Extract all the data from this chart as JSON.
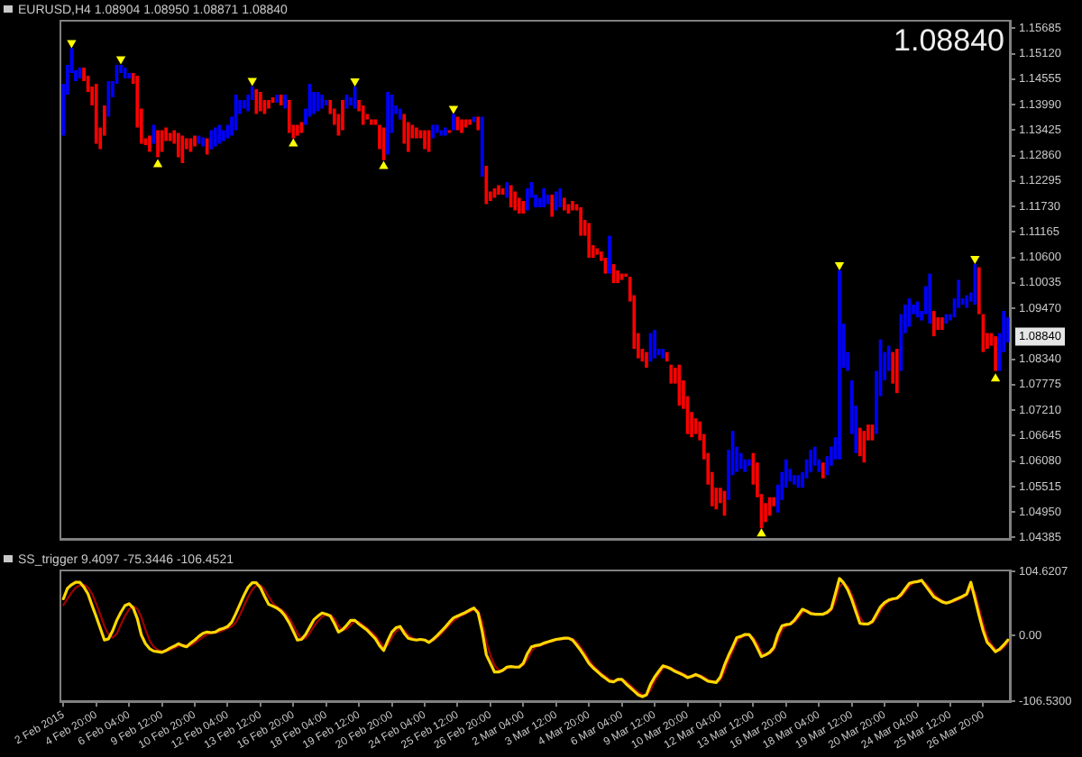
{
  "chart_data": [
    {
      "type": "bar",
      "title": "EURUSD,H4 1.08904 1.08950 1.08871 1.08840",
      "annotations": [
        "1.08840",
        {
          "text": "1.08840",
          "y": 1.0884
        }
      ],
      "categories": [
        null,
        null,
        null,
        null,
        null,
        null,
        null,
        null,
        null,
        null,
        null,
        null,
        null,
        null,
        null,
        null,
        null,
        null,
        null,
        null,
        null,
        null,
        null,
        null,
        null,
        null,
        null,
        null,
        null,
        null,
        null,
        null,
        null,
        null,
        null,
        null,
        null,
        null,
        null,
        null,
        null,
        null,
        null,
        null,
        null,
        null,
        null,
        null,
        null,
        null,
        null,
        null,
        null,
        null,
        null,
        null,
        null,
        null,
        null,
        null,
        null,
        null,
        null,
        null,
        null,
        null,
        null,
        null,
        null,
        null,
        null,
        null,
        null,
        null,
        null,
        null,
        null,
        null,
        null,
        null,
        null,
        null,
        null,
        null,
        null,
        null,
        null,
        null,
        null,
        null,
        null,
        null,
        null,
        null,
        null,
        null,
        null,
        null,
        null,
        null,
        null,
        null,
        null,
        null,
        null,
        null,
        null,
        null,
        null,
        null,
        null,
        null,
        null,
        null,
        null,
        null,
        null,
        null,
        null,
        null,
        null,
        null,
        null,
        null,
        null,
        null,
        null,
        null,
        null,
        null,
        null,
        null,
        null,
        null,
        null,
        null,
        null,
        null,
        null,
        null,
        null,
        null,
        null,
        null,
        null,
        null,
        null,
        null,
        null,
        null,
        null,
        null,
        null,
        null,
        null,
        null,
        null,
        null,
        null,
        null,
        null,
        null,
        null,
        null,
        null,
        null,
        null,
        null,
        null,
        null,
        null,
        null,
        null,
        null,
        null,
        null,
        null,
        null,
        null,
        null,
        null,
        null,
        null,
        null,
        null,
        null,
        null,
        null,
        null,
        null,
        null,
        null,
        null,
        null,
        null,
        null,
        null,
        null,
        null,
        null,
        null,
        null,
        null,
        null,
        null,
        null,
        null,
        null,
        null,
        null,
        null,
        null,
        null,
        null,
        null,
        null,
        null,
        null,
        null,
        null,
        null,
        null,
        null,
        null,
        null,
        null,
        null,
        null,
        null,
        null,
        null
      ],
      "series": [
        {
          "base": [
            1.133,
            1.1421,
            1.1469,
            1.1451,
            1.1457,
            1.1451,
            1.1427,
            1.1397,
            1.1312,
            1.13,
            1.133,
            1.1372,
            1.1415,
            1.1445,
            1.1469,
            1.1457,
            1.1457,
            1.1445,
            1.1348,
            1.1312,
            1.1309,
            1.1294,
            1.1312,
            1.1282,
            1.1294,
            1.1318,
            1.1318,
            1.1312,
            1.1282,
            1.1269,
            1.13,
            1.1294,
            1.1306,
            1.1312,
            1.1306,
            1.1288,
            1.13,
            1.1306,
            1.1312,
            1.1318,
            1.1324,
            1.133,
            1.1342,
            1.1378,
            1.139,
            1.1384,
            1.1409,
            1.1378,
            1.1384,
            1.1378,
            1.139,
            1.1403,
            1.1403,
            1.1397,
            1.139,
            1.1336,
            1.1324,
            1.133,
            1.1336,
            1.1354,
            1.1372,
            1.1378,
            1.1384,
            1.139,
            1.1397,
            1.1378,
            1.1354,
            1.133,
            1.1342,
            1.139,
            1.1397,
            1.139,
            1.1384,
            1.1354,
            1.1366,
            1.1354,
            1.1354,
            1.13,
            1.1275,
            1.1288,
            1.1336,
            1.1378,
            1.1366,
            1.1312,
            1.1294,
            1.1324,
            1.1324,
            1.1324,
            1.13,
            1.1294,
            1.1324,
            1.1336,
            1.133,
            1.133,
            1.1336,
            1.1342,
            1.1342,
            1.1336,
            1.1348,
            1.1354,
            1.136,
            1.1342,
            1.1239,
            1.1178,
            1.1185,
            1.1192,
            1.1199,
            1.1199,
            1.1192,
            1.1171,
            1.1164,
            1.1157,
            1.1157,
            1.1164,
            1.1192,
            1.1171,
            1.1171,
            1.1171,
            1.1178,
            1.115,
            1.1164,
            1.1171,
            1.1164,
            1.1157,
            1.1164,
            1.1164,
            1.1108,
            1.1108,
            1.1059,
            1.1059,
            1.1066,
            1.1052,
            1.1024,
            1.1024,
            1.1003,
            1.1003,
            1.101,
            1.1017,
            1.0962,
            1.0857,
            1.0836,
            1.0829,
            1.0815,
            1.0829,
            1.0836,
            1.0843,
            1.0836,
            1.0829,
            1.078,
            1.078,
            1.0731,
            1.0724,
            1.0668,
            1.0661,
            1.0668,
            1.0654,
            1.0612,
            1.0556,
            1.0508,
            1.0501,
            1.0515,
            1.0487,
            1.0522,
            1.0577,
            1.0584,
            1.0591,
            1.0584,
            1.0598,
            1.0556,
            1.0528,
            1.0459,
            1.0473,
            1.0487,
            1.0508,
            1.0494,
            1.0522,
            1.0549,
            1.0563,
            1.0556,
            1.0549,
            1.0549,
            1.057,
            1.0584,
            1.0598,
            1.0584,
            1.057,
            1.0577,
            1.0598,
            1.0612,
            1.0612,
            1.0815,
            1.0808,
            1.0668,
            1.0626,
            1.0619,
            1.0605,
            1.0654,
            1.0654,
            1.0668,
            1.0752,
            1.0787,
            1.0808,
            1.078,
            1.0759,
            1.0808,
            1.0892,
            1.0906,
            1.0934,
            1.0927,
            1.092,
            1.0934,
            1.0913,
            1.0885,
            1.0899,
            1.0899,
            1.0913,
            1.092,
            1.0927,
            1.0948,
            1.0955,
            1.0948,
            1.0962,
            1.0955,
            1.0934,
            1.085,
            1.0857,
            1.0864,
            1.0808,
            1.0808,
            1.085,
            1.0871
          ],
          "values": [
            0.0115,
            0.0066,
            0.0055,
            0.0024,
            0.0024,
            0.003,
            0.0036,
            0.0042,
            0.0133,
            0.0048,
            0.0067,
            0.0079,
            0.0036,
            0.0042,
            0.0018,
            0.0024,
            0.0012,
            0.0024,
            0.0115,
            0.0078,
            0.0015,
            0.0036,
            0.0042,
            0.006,
            0.0048,
            0.003,
            0.0018,
            0.003,
            0.0054,
            0.0061,
            0.0024,
            0.003,
            0.0024,
            0.0018,
            0.002,
            0.0036,
            0.0042,
            0.0042,
            0.0042,
            0.0024,
            0.003,
            0.0042,
            0.0079,
            0.0031,
            0.0019,
            0.0037,
            0.003,
            0.0055,
            0.0043,
            0.0031,
            0.0019,
            0.0012,
            0.0018,
            0.0024,
            0.0031,
            0.0073,
            0.003,
            0.0024,
            0.0024,
            0.0036,
            0.0073,
            0.0049,
            0.0043,
            0.0031,
            0.0012,
            0.0031,
            0.0036,
            0.0048,
            0.0067,
            0.0031,
            0.0018,
            0.0049,
            0.0025,
            0.0043,
            0.0012,
            0.0012,
            0.0012,
            0.0054,
            0.0073,
            0.0139,
            0.0085,
            0.0019,
            0.0024,
            0.0066,
            0.0066,
            0.003,
            0.0024,
            0.0018,
            0.0042,
            0.0048,
            0.003,
            0.0018,
            0.0012,
            0.0018,
            0.0006,
            0.0036,
            0.003,
            0.003,
            0.0018,
            0.0012,
            0.0012,
            0.003,
            0.0133,
            0.0085,
            0.0021,
            0.0021,
            0.0021,
            0.0014,
            0.0035,
            0.0049,
            0.0042,
            0.0035,
            0.0028,
            0.0049,
            0.0035,
            0.0028,
            0.0021,
            0.0042,
            0.0021,
            0.0049,
            0.0042,
            0.0042,
            0.0028,
            0.0021,
            0.0021,
            0.0014,
            0.0063,
            0.0035,
            0.0077,
            0.0028,
            0.0014,
            0.0021,
            0.0035,
            0.0084,
            0.0042,
            0.0028,
            0.0014,
            0.0007,
            0.0055,
            0.0119,
            0.0056,
            0.0028,
            0.0035,
            0.0063,
            0.0063,
            0.0014,
            0.0021,
            0.0021,
            0.0042,
            0.0035,
            0.0091,
            0.0063,
            0.0084,
            0.0056,
            0.0035,
            0.0042,
            0.0056,
            0.007,
            0.0076,
            0.0048,
            0.0034,
            0.0055,
            0.0111,
            0.0098,
            0.0056,
            0.0035,
            0.0028,
            0.0014,
            0.007,
            0.0077,
            0.0076,
            0.0042,
            0.0041,
            0.002,
            0.0062,
            0.0062,
            0.0063,
            0.0028,
            0.0021,
            0.0028,
            0.0035,
            0.0042,
            0.0049,
            0.0042,
            0.0028,
            0.0035,
            0.0042,
            0.0042,
            0.0049,
            0.0419,
            0.0098,
            0.0042,
            0.0119,
            0.0105,
            0.0063,
            0.007,
            0.0035,
            0.0035,
            0.014,
            0.0126,
            0.0063,
            0.0056,
            0.007,
            0.0098,
            0.0126,
            0.0063,
            0.0063,
            0.0021,
            0.0035,
            0.0021,
            0.0062,
            0.0111,
            0.0056,
            0.0028,
            0.0028,
            0.0021,
            0.0014,
            0.0042,
            0.0062,
            0.0014,
            0.0028,
            0.002,
            0.009,
            0.0104,
            0.0084,
            0.0035,
            0.0028,
            0.0077,
            0.0084,
            0.0091,
            0.0056
          ],
          "colors": [
            "#0000ff",
            "#0000ff",
            "#0000ff",
            "#0000ff",
            "#0000ff",
            "#ff0000",
            "#ff0000",
            "#ff0000",
            "#ff0000",
            "#ff0000",
            "#ff0000",
            "#0000ff",
            "#0000ff",
            "#0000ff",
            "#0000ff",
            "#0000ff",
            "#0000ff",
            "#ff0000",
            "#ff0000",
            "#ff0000",
            "#ff0000",
            "#ff0000",
            "#0000ff",
            "#ff0000",
            "#ff0000",
            "#ff0000",
            "#ff0000",
            "#ff0000",
            "#ff0000",
            "#ff0000",
            "#ff0000",
            "#ff0000",
            "#ff0000",
            "#0000ff",
            "#0000ff",
            "#ff0000",
            "#0000ff",
            "#0000ff",
            "#0000ff",
            "#0000ff",
            "#0000ff",
            "#0000ff",
            "#0000ff",
            "#0000ff",
            "#0000ff",
            "#0000ff",
            "#0000ff",
            "#ff0000",
            "#ff0000",
            "#ff0000",
            "#ff0000",
            "#ff0000",
            "#0000ff",
            "#ff0000",
            "#0000ff",
            "#ff0000",
            "#ff0000",
            "#ff0000",
            "#ff0000",
            "#0000ff",
            "#0000ff",
            "#0000ff",
            "#0000ff",
            "#0000ff",
            "#0000ff",
            "#ff0000",
            "#ff0000",
            "#ff0000",
            "#ff0000",
            "#0000ff",
            "#0000ff",
            "#0000ff",
            "#ff0000",
            "#ff0000",
            "#ff0000",
            "#ff0000",
            "#ff0000",
            "#ff0000",
            "#ff0000",
            "#0000ff",
            "#0000ff",
            "#0000ff",
            "#0000ff",
            "#ff0000",
            "#ff0000",
            "#ff0000",
            "#ff0000",
            "#ff0000",
            "#ff0000",
            "#ff0000",
            "#0000ff",
            "#0000ff",
            "#0000ff",
            "#0000ff",
            "#ff0000",
            "#0000ff",
            "#ff0000",
            "#ff0000",
            "#ff0000",
            "#ff0000",
            "#0000ff",
            "#ff0000",
            "#0000ff",
            "#ff0000",
            "#ff0000",
            "#ff0000",
            "#ff0000",
            "#ff0000",
            "#0000ff",
            "#ff0000",
            "#ff0000",
            "#ff0000",
            "#ff0000",
            "#0000ff",
            "#0000ff",
            "#0000ff",
            "#0000ff",
            "#0000ff",
            "#0000ff",
            "#ff0000",
            "#0000ff",
            "#0000ff",
            "#ff0000",
            "#ff0000",
            "#ff0000",
            "#ff0000",
            "#ff0000",
            "#ff0000",
            "#ff0000",
            "#ff0000",
            "#ff0000",
            "#ff0000",
            "#ff0000",
            "#0000ff",
            "#ff0000",
            "#ff0000",
            "#ff0000",
            "#ff0000",
            "#ff0000",
            "#ff0000",
            "#ff0000",
            "#ff0000",
            "#ff0000",
            "#0000ff",
            "#0000ff",
            "#0000ff",
            "#0000ff",
            "#ff0000",
            "#ff0000",
            "#ff0000",
            "#ff0000",
            "#ff0000",
            "#ff0000",
            "#ff0000",
            "#ff0000",
            "#ff0000",
            "#ff0000",
            "#ff0000",
            "#ff0000",
            "#ff0000",
            "#ff0000",
            "#ff0000",
            "#0000ff",
            "#0000ff",
            "#0000ff",
            "#0000ff",
            "#0000ff",
            "#0000ff",
            "#ff0000",
            "#ff0000",
            "#ff0000",
            "#ff0000",
            "#ff0000",
            "#ff0000",
            "#0000ff",
            "#0000ff",
            "#0000ff",
            "#0000ff",
            "#0000ff",
            "#0000ff",
            "#0000ff",
            "#0000ff",
            "#0000ff",
            "#0000ff",
            "#0000ff",
            "#ff0000",
            "#0000ff",
            "#0000ff",
            "#0000ff",
            "#0000ff",
            "#0000ff",
            "#0000ff",
            "#0000ff",
            "#0000ff",
            "#ff0000",
            "#ff0000",
            "#ff0000",
            "#ff0000",
            "#0000ff",
            "#0000ff",
            "#0000ff",
            "#0000ff",
            "#ff0000",
            "#ff0000",
            "#0000ff",
            "#0000ff",
            "#0000ff",
            "#0000ff",
            "#0000ff",
            "#0000ff",
            "#0000ff",
            "#0000ff",
            "#ff0000",
            "#ff0000",
            "#ff0000",
            "#0000ff",
            "#0000ff",
            "#0000ff",
            "#0000ff",
            "#0000ff",
            "#0000ff",
            "#0000ff",
            "#0000ff",
            "#ff0000",
            "#ff0000",
            "#ff0000",
            "#ff0000",
            "#ff0000",
            "#0000ff",
            "#0000ff",
            "#0000ff"
          ]
        },
        {
          "type": "scatter",
          "color": "#ffff00",
          "marker": "triangle",
          "values": [
            null,
            null,
            1.1536,
            null,
            null,
            null,
            null,
            null,
            null,
            null,
            null,
            null,
            null,
            null,
            1.15,
            null,
            null,
            null,
            null,
            null,
            null,
            null,
            null,
            1.1266,
            null,
            null,
            null,
            null,
            null,
            null,
            null,
            null,
            null,
            null,
            null,
            null,
            null,
            null,
            null,
            null,
            null,
            null,
            null,
            null,
            null,
            null,
            1.1452,
            null,
            null,
            null,
            null,
            null,
            null,
            null,
            null,
            null,
            1.1312,
            null,
            null,
            null,
            null,
            null,
            null,
            null,
            null,
            null,
            null,
            null,
            null,
            null,
            null,
            1.1451,
            null,
            null,
            null,
            null,
            null,
            null,
            1.1262,
            null,
            null,
            null,
            null,
            null,
            null,
            null,
            null,
            null,
            null,
            null,
            null,
            null,
            null,
            null,
            null,
            1.139,
            null,
            null,
            null,
            null,
            null,
            null,
            null,
            null,
            null,
            null,
            null,
            null,
            null,
            null,
            null,
            null,
            null,
            null,
            null,
            null,
            null,
            null,
            null,
            null,
            null,
            null,
            null,
            null,
            null,
            null,
            null,
            null,
            null,
            null,
            null,
            null,
            null,
            null,
            null,
            null,
            null,
            null,
            null,
            null,
            null,
            null,
            null,
            null,
            null,
            null,
            null,
            null,
            null,
            null,
            null,
            null,
            null,
            null,
            null,
            null,
            null,
            null,
            null,
            null,
            null,
            null,
            null,
            null,
            null,
            null,
            null,
            null,
            null,
            null,
            1.0447,
            null,
            null,
            null,
            null,
            null,
            null,
            null,
            null,
            null,
            null,
            null,
            null,
            null,
            null,
            null,
            null,
            null,
            null,
            1.1043,
            null,
            null,
            null,
            null,
            null,
            null,
            null,
            null,
            null,
            null,
            null,
            null,
            null,
            null,
            null,
            null,
            null,
            null,
            null,
            null,
            null,
            null,
            null,
            null,
            null,
            null,
            null,
            null,
            null,
            null,
            null,
            null,
            1.1057,
            null,
            null,
            null,
            null,
            1.0791,
            null,
            null,
            null
          ]
        }
      ],
      "ylim": [
        1.0435,
        1.1583
      ],
      "yticks": [
        1.15685,
        {
          "value": 1.1512,
          "label": "1.15120"
        },
        1.14555,
        {
          "value": 1.1399,
          "label": "1.13990"
        },
        1.13425,
        {
          "value": 1.1286,
          "label": "1.12860"
        },
        1.12295,
        {
          "value": 1.1173,
          "label": "1.11730"
        },
        1.11165,
        {
          "value": 1.106,
          "label": "1.10600"
        },
        1.10035,
        {
          "value": 1.0947,
          "label": "1.09470"
        },
        {
          "value": 1.0834,
          "label": "1.08340"
        },
        1.07775,
        {
          "value": 1.0721,
          "label": "1.07210"
        },
        1.06645,
        {
          "value": 1.0608,
          "label": "1.06080"
        },
        1.05515,
        {
          "value": 1.0495,
          "label": "1.04950"
        },
        1.04385
      ],
      "tick_labels": "y"
    },
    {
      "type": "line",
      "title": "SS_trigger 9.4097 -75.3446 -106.4521",
      "categories": [
        "2 Feb 2015",
        null,
        null,
        null,
        null,
        null,
        null,
        null,
        "4 Feb 20:00",
        null,
        null,
        null,
        null,
        null,
        null,
        null,
        "6 Feb 04:00",
        null,
        null,
        null,
        null,
        null,
        null,
        null,
        "9 Feb 12:00",
        null,
        null,
        null,
        null,
        null,
        null,
        null,
        "10 Feb 20:00",
        null,
        null,
        null,
        null,
        null,
        null,
        null,
        "12 Feb 04:00",
        null,
        null,
        null,
        null,
        null,
        null,
        null,
        "13 Feb 12:00",
        null,
        null,
        null,
        null,
        null,
        null,
        null,
        "16 Feb 20:00",
        null,
        null,
        null,
        null,
        null,
        null,
        null,
        "18 Feb 04:00",
        null,
        null,
        null,
        null,
        null,
        null,
        null,
        "19 Feb 12:00",
        null,
        null,
        null,
        null,
        null,
        null,
        null,
        "20 Feb 20:00",
        null,
        null,
        null,
        null,
        null,
        null,
        null,
        "24 Feb 04:00",
        null,
        null,
        null,
        null,
        null,
        null,
        null,
        "25 Feb 12:00",
        null,
        null,
        null,
        null,
        null,
        null,
        null,
        "26 Feb 20:00",
        null,
        null,
        null,
        null,
        null,
        null,
        null,
        "2 Mar 04:00",
        null,
        null,
        null,
        null,
        null,
        null,
        null,
        "3 Mar 12:00",
        null,
        null,
        null,
        null,
        null,
        null,
        null,
        "4 Mar 20:00",
        null,
        null,
        null,
        null,
        null,
        null,
        null,
        "6 Mar 04:00",
        null,
        null,
        null,
        null,
        null,
        null,
        null,
        "9 Mar 12:00",
        null,
        null,
        null,
        null,
        null,
        null,
        null,
        "10 Mar 20:00",
        null,
        null,
        null,
        null,
        null,
        null,
        null,
        "12 Mar 04:00",
        null,
        null,
        null,
        null,
        null,
        null,
        null,
        "13 Mar 12:00",
        null,
        null,
        null,
        null,
        null,
        null,
        null,
        "16 Mar 20:00",
        null,
        null,
        null,
        null,
        null,
        null,
        null,
        "18 Mar 04:00",
        null,
        null,
        null,
        null,
        null,
        null,
        null,
        "19 Mar 12:00",
        null,
        null,
        null,
        null,
        null,
        null,
        null,
        "20 Mar 20:00",
        null,
        null,
        null,
        null,
        null,
        null,
        null,
        "24 Mar 04:00",
        null,
        null,
        null,
        null,
        null,
        null,
        null,
        "25 Mar 12:00",
        null,
        null,
        null,
        null,
        null,
        null,
        null,
        "26 Mar 20:00",
        null,
        null,
        null,
        null,
        null,
        null
      ],
      "series": [
        {
          "color": "#ffd700",
          "values": [
            60,
            77,
            83,
            87,
            87,
            79,
            68,
            49,
            31,
            12,
            -7,
            -5,
            8,
            25,
            38,
            49,
            52,
            45,
            28,
            1,
            -13,
            -21,
            -25,
            -26,
            -27,
            -24,
            -20,
            -17,
            -13,
            -16,
            -18,
            -12,
            -7,
            -1,
            4,
            6,
            5,
            6,
            10,
            12,
            15,
            22,
            36,
            51,
            66,
            79,
            86,
            86,
            78,
            64,
            51,
            48,
            45,
            40,
            32,
            21,
            7,
            -7,
            -6,
            2,
            14,
            26,
            32,
            37,
            35,
            32,
            20,
            6,
            10,
            17,
            25,
            25,
            19,
            14,
            9,
            2,
            -5,
            -16,
            -24,
            -8,
            6,
            13,
            15,
            4,
            -4,
            -6,
            -7,
            -6,
            -7,
            -11,
            -6,
            0,
            7,
            14,
            22,
            29,
            32,
            35,
            38,
            42,
            45,
            37,
            7,
            -31,
            -45,
            -59,
            -59,
            -56,
            -51,
            -50,
            -51,
            -51,
            -45,
            -29,
            -18,
            -16,
            -15,
            -12,
            -10,
            -8,
            -6,
            -5,
            -4,
            -4,
            -7,
            -15,
            -24,
            -34,
            -45,
            -52,
            -58,
            -64,
            -69,
            -74,
            -75,
            -71,
            -71,
            -78,
            -84,
            -90,
            -96,
            -99,
            -96,
            -79,
            -67,
            -58,
            -49,
            -51,
            -54,
            -58,
            -61,
            -64,
            -68,
            -66,
            -63,
            -66,
            -70,
            -74,
            -75,
            -76,
            -67,
            -48,
            -32,
            -18,
            -3,
            -1,
            2,
            2,
            -7,
            -20,
            -34,
            -31,
            -27,
            -19,
            2,
            16,
            18,
            19,
            25,
            34,
            43,
            40,
            36,
            35,
            35,
            35,
            38,
            44,
            68,
            93,
            86,
            75,
            59,
            39,
            20,
            19,
            19,
            23,
            35,
            47,
            54,
            58,
            60,
            61,
            67,
            76,
            85,
            87,
            88,
            90,
            81,
            72,
            63,
            59,
            55,
            53,
            55,
            58,
            61,
            64,
            68,
            87,
            60,
            33,
            8,
            -11,
            -18,
            -26,
            -22,
            -15,
            -7
          ]
        },
        {
          "color": "#a00000",
          "values": [
            50,
            60,
            70,
            78,
            82,
            83,
            78,
            68,
            52,
            34,
            15,
            2,
            -3,
            3,
            18,
            32,
            43,
            48,
            44,
            30,
            10,
            -8,
            -18,
            -23,
            -25,
            -25,
            -23,
            -20,
            -17,
            -15,
            -16,
            -16,
            -12,
            -7,
            -2,
            2,
            4,
            5,
            6,
            9,
            12,
            15,
            22,
            34,
            49,
            63,
            75,
            82,
            82,
            75,
            63,
            53,
            47,
            43,
            37,
            29,
            17,
            4,
            -5,
            -4,
            4,
            15,
            24,
            31,
            34,
            34,
            28,
            16,
            9,
            11,
            18,
            23,
            22,
            17,
            12,
            6,
            0,
            -9,
            -18,
            -15,
            -3,
            7,
            12,
            9,
            1,
            -4,
            -6,
            -6,
            -7,
            -9,
            -8,
            -3,
            3,
            10,
            17,
            24,
            29,
            33,
            36,
            39,
            42,
            41,
            22,
            -10,
            -32,
            -48,
            -56,
            -57,
            -53,
            -51,
            -50,
            -50,
            -48,
            -38,
            -25,
            -18,
            -16,
            -14,
            -11,
            -9,
            -7,
            -6,
            -5,
            -4,
            -5,
            -10,
            -19,
            -28,
            -39,
            -48,
            -55,
            -61,
            -66,
            -71,
            -74,
            -73,
            -71,
            -74,
            -80,
            -86,
            -92,
            -96,
            -97,
            -88,
            -74,
            -63,
            -53,
            -50,
            -52,
            -56,
            -59,
            -62,
            -66,
            -67,
            -65,
            -64,
            -67,
            -72,
            -74,
            -75,
            -72,
            -58,
            -40,
            -25,
            -10,
            -3,
            0,
            1,
            -3,
            -13,
            -27,
            -32,
            -29,
            -23,
            -8,
            9,
            16,
            18,
            22,
            29,
            38,
            41,
            38,
            36,
            35,
            35,
            36,
            41,
            55,
            80,
            86,
            80,
            67,
            49,
            30,
            20,
            19,
            21,
            29,
            41,
            50,
            56,
            59,
            60,
            64,
            71,
            80,
            86,
            87,
            89,
            85,
            77,
            68,
            61,
            57,
            54,
            54,
            56,
            59,
            62,
            66,
            78,
            70,
            45,
            20,
            -2,
            -14,
            -22,
            -24,
            -19,
            -11
          ]
        }
      ],
      "ylim": [
        -106.53,
        104.6207
      ],
      "yticks": [
        104.6207,
        {
          "value": 0,
          "label": "0.00"
        },
        {
          "value": -106.53,
          "label": "-106.5300"
        }
      ]
    }
  ]
}
